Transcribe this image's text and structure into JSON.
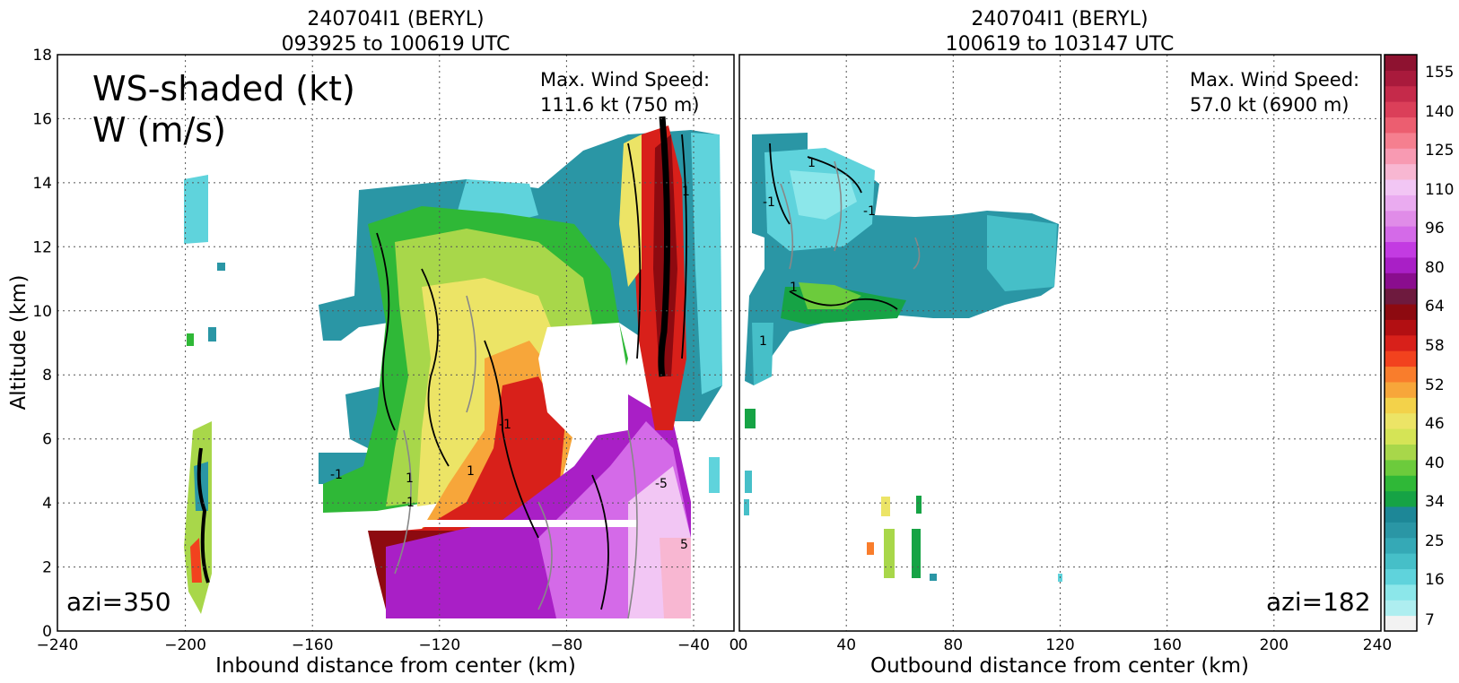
{
  "chart_data": [
    {
      "type": "heatmap",
      "panel": "left",
      "title_line1": "240704I1 (BERYL)",
      "title_line2": "093925 to 100619 UTC",
      "xlabel": "Inbound distance from center (km)",
      "ylabel": "Altitude (km)",
      "xlim": [
        -240,
        0
      ],
      "ylim": [
        0,
        18
      ],
      "x_ticks": [
        "−240",
        "−200",
        "−160",
        "−120",
        "−80",
        "−40",
        "0"
      ],
      "x_tick_values": [
        -240,
        -200,
        -160,
        -120,
        -80,
        -40,
        0
      ],
      "y_ticks": [
        "0",
        "2",
        "4",
        "6",
        "8",
        "10",
        "12",
        "14",
        "16",
        "18"
      ],
      "grid": true,
      "overlay_label_1": "WS-shaded (kt)",
      "overlay_label_2": "W (m/s)",
      "max_label_1": "Max. Wind Speed:",
      "max_label_2": "111.6 kt (750 m)",
      "azimuth_label": "azi=350",
      "contour_labels": [
        "-1",
        "1",
        "-1",
        "1",
        "5",
        "-5",
        "-1",
        "1"
      ]
    },
    {
      "type": "heatmap",
      "panel": "right",
      "title_line1": "240704I1 (BERYL)",
      "title_line2": "100619 to 103147 UTC",
      "xlabel": "Outbound distance from center (km)",
      "xlim": [
        0,
        240
      ],
      "ylim": [
        0,
        18
      ],
      "x_ticks": [
        "0",
        "40",
        "80",
        "120",
        "160",
        "200",
        "240"
      ],
      "x_tick_values": [
        0,
        40,
        80,
        120,
        160,
        200,
        240
      ],
      "grid": true,
      "max_label_1": "Max. Wind Speed:",
      "max_label_2": "57.0 kt (6900 m)",
      "azimuth_label": "azi=182",
      "contour_labels": [
        "1",
        "-1",
        "1",
        "1",
        "-1"
      ]
    }
  ],
  "colorbar": {
    "tick_labels": [
      "7",
      "16",
      "25",
      "34",
      "40",
      "46",
      "52",
      "58",
      "64",
      "80",
      "96",
      "110",
      "125",
      "140",
      "155"
    ],
    "colors": [
      "#f2f2f2",
      "#aeeef0",
      "#8ce7ea",
      "#5fd3dc",
      "#46bfc8",
      "#35a9b6",
      "#2a96a5",
      "#1d8797",
      "#16a345",
      "#2fb837",
      "#6ccb3c",
      "#a8d74a",
      "#d5e456",
      "#ece466",
      "#f3d24a",
      "#f7a63a",
      "#f97d2c",
      "#f2421e",
      "#d8201a",
      "#b20f12",
      "#8d0a10",
      "#6e1a3e",
      "#8a0d8e",
      "#a91fc6",
      "#c33be2",
      "#d46ae8",
      "#e08ce8",
      "#eaabf0",
      "#f2c6f4",
      "#f8b7d2",
      "#f89ab2",
      "#f57f8f",
      "#ec5e70",
      "#db3f59",
      "#c52a4a",
      "#a91a3c",
      "#8e1230"
    ]
  }
}
